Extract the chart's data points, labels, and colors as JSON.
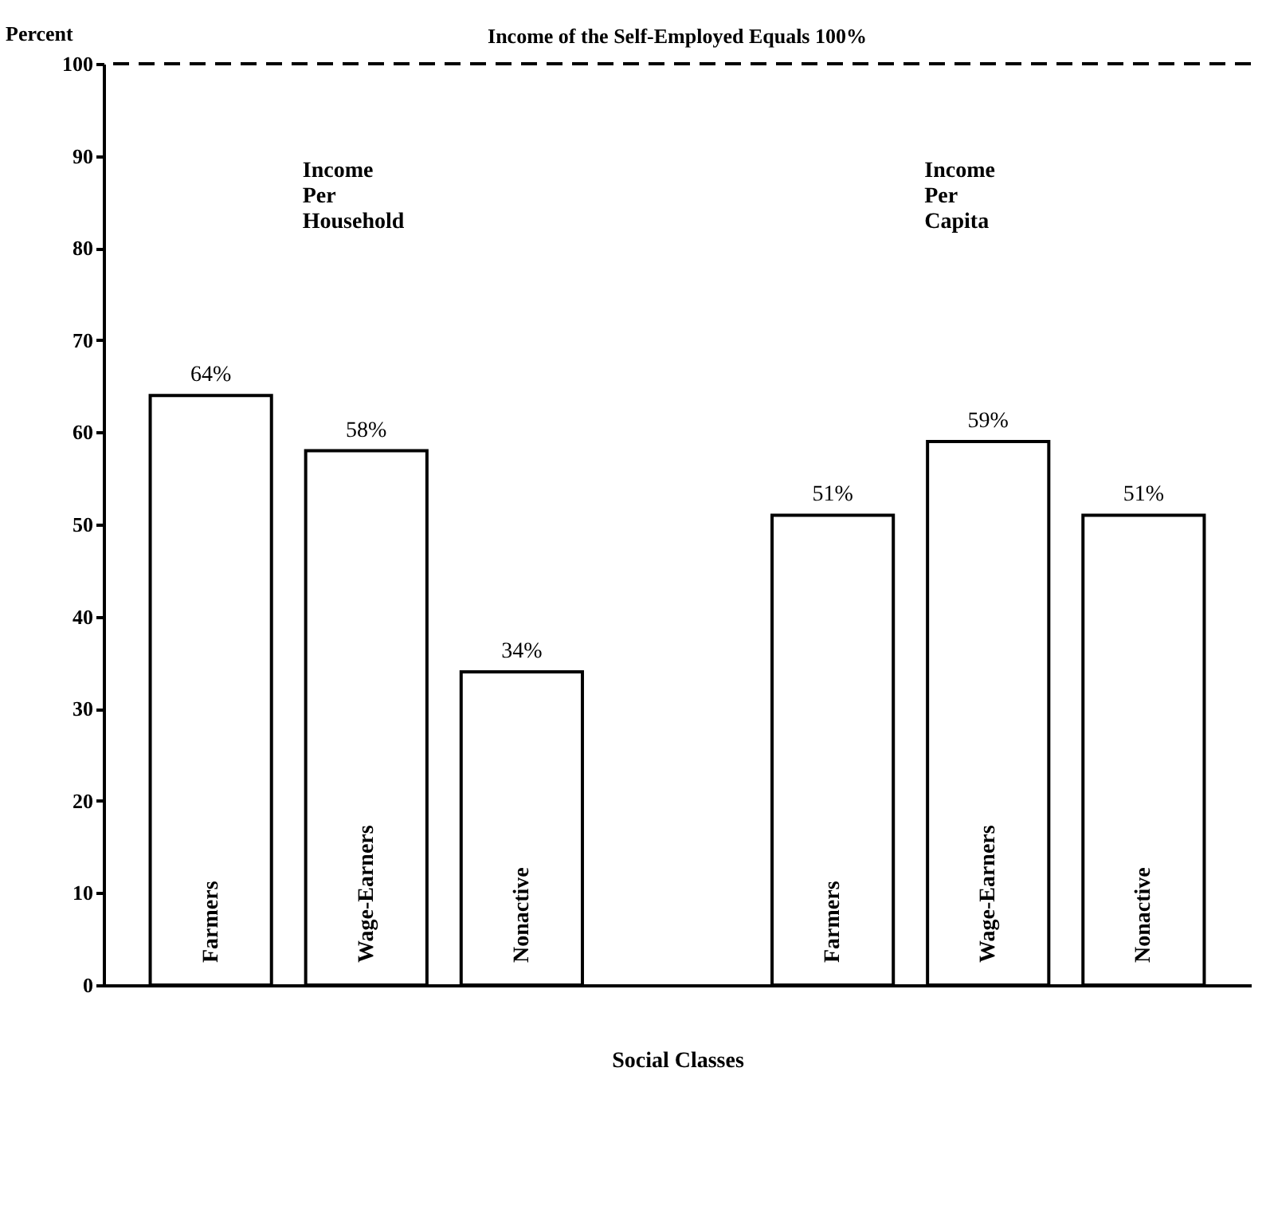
{
  "chart_data": {
    "type": "bar",
    "categories": [
      "Farmers",
      "Wage-Earners",
      "Nonactive",
      null,
      "Farmers",
      "Wage-Earners",
      "Nonactive"
    ],
    "values": [
      64,
      58,
      34,
      null,
      51,
      59,
      51
    ],
    "value_labels": [
      "64%",
      "58%",
      "34%",
      null,
      "51%",
      "59%",
      "51%"
    ],
    "color": "#ffffff",
    "ylabel": "Percent",
    "xlabel": "Social Classes",
    "ylim": [
      0,
      100
    ],
    "yticks": [
      0,
      10,
      20,
      30,
      40,
      50,
      60,
      70,
      80,
      90,
      100
    ],
    "ref_lines": [
      {
        "axis": "y",
        "value": 100,
        "label": "Income of the Self-Employed Equals 100%",
        "line_style": "dashed"
      }
    ],
    "annotations": [
      "Income Per Household",
      "Income Per Capita"
    ],
    "tick_labels": "y",
    "grid": false
  }
}
